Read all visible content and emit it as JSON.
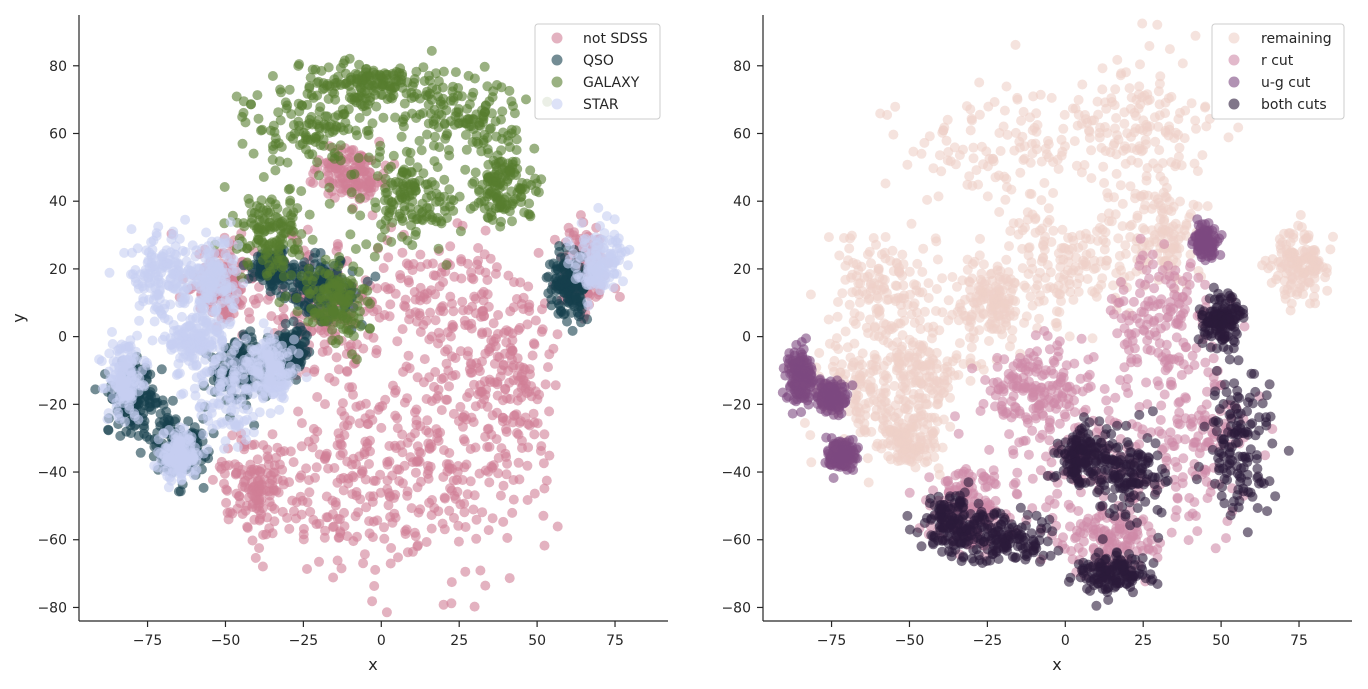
{
  "chart_data": [
    {
      "type": "scatter",
      "title": "",
      "xlabel": "x",
      "ylabel": "y",
      "xlim": [
        -97,
        92
      ],
      "ylim": [
        -84,
        95
      ],
      "xticks": [
        -75,
        -50,
        -25,
        0,
        25,
        50,
        75
      ],
      "yticks": [
        -80,
        -60,
        -40,
        -20,
        0,
        20,
        40,
        60,
        80
      ],
      "tick_labels_x": [
        "−75",
        "−50",
        "−25",
        "0",
        "25",
        "50",
        "75"
      ],
      "tick_labels_y": [
        "−80",
        "−60",
        "−40",
        "−20",
        "0",
        "20",
        "40",
        "60",
        "80"
      ],
      "grid": false,
      "legend_position": "top-right",
      "series": [
        {
          "name": "not SDSS",
          "color": "#d07f96",
          "regions": [
            [
              5,
              -25,
              28,
              38
            ],
            [
              -10,
              -45,
              22,
              22
            ],
            [
              30,
              -40,
              24,
              28
            ],
            [
              20,
              10,
              22,
              22
            ],
            [
              -20,
              10,
              12,
              20
            ],
            [
              -40,
              -45,
              10,
              12
            ],
            [
              65,
              20,
              8,
              10
            ],
            [
              -10,
              48,
              10,
              8
            ],
            [
              -50,
              15,
              10,
              12
            ],
            [
              40,
              -10,
              15,
              22
            ]
          ]
        },
        {
          "name": "QSO",
          "color": "#163f4c",
          "regions": [
            [
              -80,
              -18,
              8,
              10
            ],
            [
              -65,
              -33,
              8,
              8
            ],
            [
              -35,
              20,
              6,
              5
            ],
            [
              -45,
              -10,
              8,
              8
            ],
            [
              -30,
              -5,
              6,
              6
            ],
            [
              60,
              15,
              6,
              8
            ],
            [
              -20,
              15,
              10,
              8
            ]
          ]
        },
        {
          "name": "GALAXY",
          "color": "#567d2e",
          "regions": [
            [
              -20,
              62,
              22,
              12
            ],
            [
              25,
              65,
              20,
              12
            ],
            [
              -35,
              30,
              10,
              12
            ],
            [
              10,
              40,
              14,
              12
            ],
            [
              40,
              45,
              10,
              12
            ],
            [
              -5,
              75,
              18,
              5
            ],
            [
              -15,
              10,
              10,
              12
            ]
          ]
        },
        {
          "name": "STAR",
          "color": "#c6cff1",
          "regions": [
            [
              -70,
              18,
              10,
              10
            ],
            [
              -55,
              18,
              8,
              10
            ],
            [
              -50,
              -15,
              12,
              16
            ],
            [
              -82,
              -12,
              6,
              10
            ],
            [
              -65,
              -35,
              6,
              6
            ],
            [
              -35,
              -10,
              8,
              8
            ],
            [
              70,
              22,
              7,
              9
            ],
            [
              -60,
              0,
              10,
              8
            ]
          ]
        }
      ]
    },
    {
      "type": "scatter",
      "title": "",
      "xlabel": "x",
      "ylabel": "",
      "xlim": [
        -97,
        92
      ],
      "ylim": [
        -84,
        95
      ],
      "xticks": [
        -75,
        -50,
        -25,
        0,
        25,
        50,
        75
      ],
      "yticks": [
        -80,
        -60,
        -40,
        -20,
        0,
        20,
        40,
        60,
        80
      ],
      "tick_labels_x": [
        "−75",
        "−50",
        "−25",
        "0",
        "25",
        "50",
        "75"
      ],
      "tick_labels_y": [
        "−80",
        "−60",
        "−40",
        "−20",
        "0",
        "20",
        "40",
        "60",
        "80"
      ],
      "grid": false,
      "legend_position": "top-right",
      "series": [
        {
          "name": "remaining",
          "color": "#eed0c8",
          "regions": [
            [
              -20,
              55,
              28,
              18
            ],
            [
              25,
              62,
              22,
              18
            ],
            [
              -60,
              15,
              16,
              15
            ],
            [
              -65,
              -15,
              16,
              14
            ],
            [
              -45,
              -10,
              12,
              12
            ],
            [
              75,
              22,
              8,
              10
            ],
            [
              0,
              20,
              20,
              14
            ],
            [
              -25,
              10,
              10,
              12
            ],
            [
              30,
              30,
              14,
              14
            ],
            [
              -50,
              -30,
              10,
              8
            ]
          ]
        },
        {
          "name": "r cut",
          "color": "#cf8aa8",
          "regions": [
            [
              5,
              -30,
              30,
              28
            ],
            [
              30,
              5,
              14,
              18
            ],
            [
              -30,
              -50,
              12,
              12
            ],
            [
              40,
              -30,
              18,
              22
            ],
            [
              -10,
              -15,
              12,
              14
            ],
            [
              15,
              -60,
              14,
              10
            ]
          ]
        },
        {
          "name": "u-g cut",
          "color": "#7d4a81",
          "regions": [
            [
              -85,
              -12,
              4,
              7
            ],
            [
              -75,
              -18,
              4,
              4
            ],
            [
              -72,
              -35,
              4,
              4
            ],
            [
              45,
              28,
              3,
              4
            ]
          ]
        },
        {
          "name": "both cuts",
          "color": "#2b1a3b",
          "regions": [
            [
              -20,
              -60,
              14,
              8
            ],
            [
              55,
              -30,
              10,
              22
            ],
            [
              20,
              -40,
              10,
              12
            ],
            [
              15,
              -70,
              10,
              5
            ],
            [
              -35,
              -55,
              10,
              8
            ],
            [
              50,
              5,
              6,
              6
            ],
            [
              5,
              -35,
              8,
              8
            ]
          ]
        }
      ]
    }
  ]
}
